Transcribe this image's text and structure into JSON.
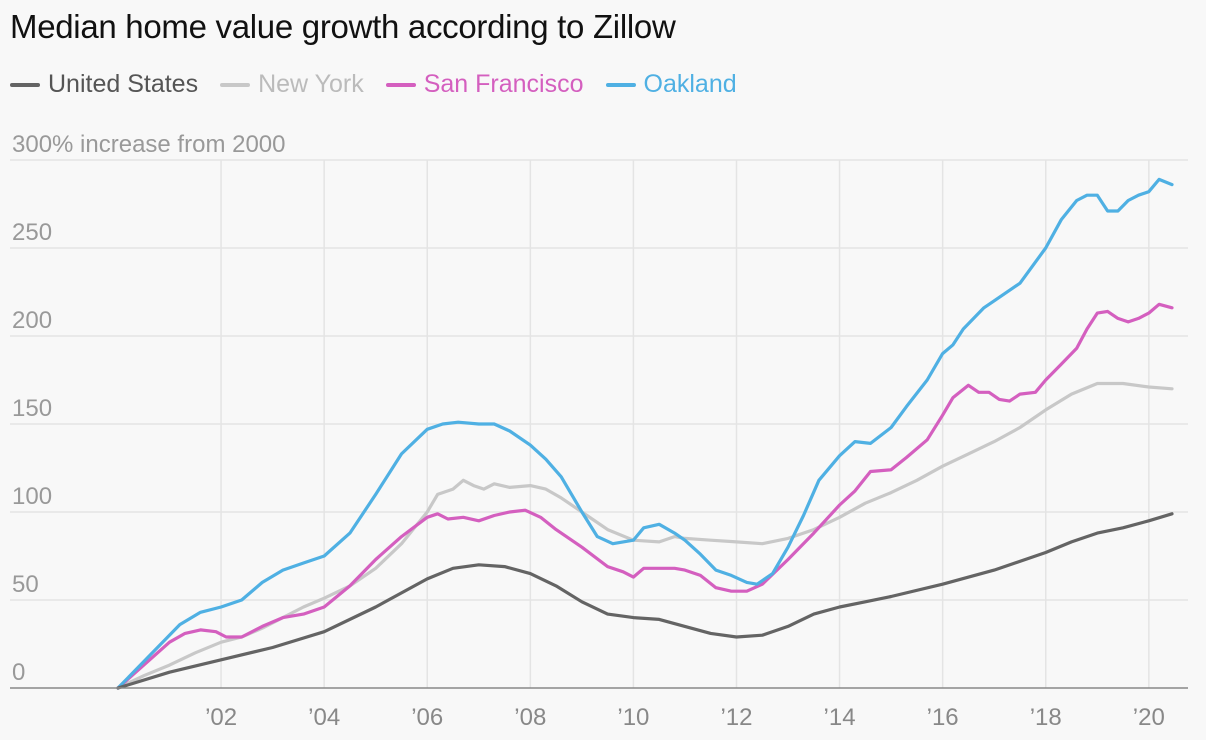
{
  "title": "Median home value growth according to Zillow",
  "chart_data": {
    "type": "line",
    "title": "Median home value growth according to Zillow",
    "y_top_label": "300% increase from 2000",
    "y_ticks": [
      {
        "value": 0,
        "label": "0"
      },
      {
        "value": 50,
        "label": "50"
      },
      {
        "value": 100,
        "label": "100"
      },
      {
        "value": 150,
        "label": "150"
      },
      {
        "value": 200,
        "label": "200"
      },
      {
        "value": 250,
        "label": "250"
      },
      {
        "value": 300,
        "label": "300% increase from 2000"
      }
    ],
    "x_ticks": [
      {
        "value": 2002,
        "label": "’02"
      },
      {
        "value": 2004,
        "label": "’04"
      },
      {
        "value": 2006,
        "label": "’06"
      },
      {
        "value": 2008,
        "label": "’08"
      },
      {
        "value": 2010,
        "label": "’10"
      },
      {
        "value": 2012,
        "label": "’12"
      },
      {
        "value": 2014,
        "label": "’14"
      },
      {
        "value": 2016,
        "label": "’16"
      },
      {
        "value": 2018,
        "label": "’18"
      },
      {
        "value": 2020,
        "label": "’20"
      }
    ],
    "xlim": [
      2000,
      2020.5
    ],
    "ylim": [
      0,
      300
    ],
    "grid": true,
    "legend_position": "top-left",
    "series": [
      {
        "name": "New York",
        "color": "#c8c8c8",
        "points": [
          [
            2000,
            0
          ],
          [
            2000.5,
            7
          ],
          [
            2001,
            13
          ],
          [
            2001.5,
            20
          ],
          [
            2002,
            26
          ],
          [
            2002.4,
            29
          ],
          [
            2002.8,
            34
          ],
          [
            2003.2,
            40
          ],
          [
            2003.6,
            46
          ],
          [
            2004,
            51
          ],
          [
            2004.5,
            58
          ],
          [
            2005,
            68
          ],
          [
            2005.5,
            82
          ],
          [
            2006,
            100
          ],
          [
            2006.2,
            110
          ],
          [
            2006.5,
            113
          ],
          [
            2006.7,
            118
          ],
          [
            2006.9,
            115
          ],
          [
            2007.1,
            113
          ],
          [
            2007.3,
            116
          ],
          [
            2007.6,
            114
          ],
          [
            2008,
            115
          ],
          [
            2008.3,
            113
          ],
          [
            2008.6,
            108
          ],
          [
            2009,
            100
          ],
          [
            2009.5,
            90
          ],
          [
            2010,
            84
          ],
          [
            2010.5,
            83
          ],
          [
            2010.8,
            86
          ],
          [
            2011,
            85
          ],
          [
            2011.5,
            84
          ],
          [
            2012,
            83
          ],
          [
            2012.5,
            82
          ],
          [
            2013,
            85
          ],
          [
            2013.5,
            90
          ],
          [
            2014,
            97
          ],
          [
            2014.5,
            105
          ],
          [
            2015,
            111
          ],
          [
            2015.5,
            118
          ],
          [
            2016,
            126
          ],
          [
            2016.5,
            133
          ],
          [
            2017,
            140
          ],
          [
            2017.5,
            148
          ],
          [
            2018,
            158
          ],
          [
            2018.5,
            167
          ],
          [
            2019,
            173
          ],
          [
            2019.5,
            173
          ],
          [
            2020,
            171
          ],
          [
            2020.45,
            170
          ]
        ]
      },
      {
        "name": "San Francisco",
        "color": "#d45fbf",
        "points": [
          [
            2000,
            0
          ],
          [
            2000.5,
            13
          ],
          [
            2001,
            26
          ],
          [
            2001.3,
            31
          ],
          [
            2001.6,
            33
          ],
          [
            2001.9,
            32
          ],
          [
            2002.1,
            29
          ],
          [
            2002.4,
            29
          ],
          [
            2002.8,
            35
          ],
          [
            2003.2,
            40
          ],
          [
            2003.6,
            42
          ],
          [
            2004,
            46
          ],
          [
            2004.5,
            58
          ],
          [
            2005,
            73
          ],
          [
            2005.5,
            86
          ],
          [
            2006,
            97
          ],
          [
            2006.2,
            99
          ],
          [
            2006.4,
            96
          ],
          [
            2006.7,
            97
          ],
          [
            2007,
            95
          ],
          [
            2007.3,
            98
          ],
          [
            2007.6,
            100
          ],
          [
            2007.9,
            101
          ],
          [
            2008.2,
            97
          ],
          [
            2008.5,
            90
          ],
          [
            2009,
            80
          ],
          [
            2009.5,
            69
          ],
          [
            2009.8,
            66
          ],
          [
            2010,
            63
          ],
          [
            2010.2,
            68
          ],
          [
            2010.5,
            68
          ],
          [
            2010.8,
            68
          ],
          [
            2011,
            67
          ],
          [
            2011.3,
            64
          ],
          [
            2011.6,
            57
          ],
          [
            2011.9,
            55
          ],
          [
            2012.2,
            55
          ],
          [
            2012.5,
            59
          ],
          [
            2013,
            73
          ],
          [
            2013.5,
            88
          ],
          [
            2014,
            104
          ],
          [
            2014.3,
            112
          ],
          [
            2014.6,
            123
          ],
          [
            2015,
            124
          ],
          [
            2015.3,
            131
          ],
          [
            2015.7,
            141
          ],
          [
            2016,
            155
          ],
          [
            2016.2,
            165
          ],
          [
            2016.5,
            172
          ],
          [
            2016.7,
            168
          ],
          [
            2016.9,
            168
          ],
          [
            2017.1,
            164
          ],
          [
            2017.3,
            163
          ],
          [
            2017.5,
            167
          ],
          [
            2017.8,
            168
          ],
          [
            2018,
            175
          ],
          [
            2018.3,
            184
          ],
          [
            2018.6,
            193
          ],
          [
            2018.8,
            204
          ],
          [
            2019,
            213
          ],
          [
            2019.2,
            214
          ],
          [
            2019.4,
            210
          ],
          [
            2019.6,
            208
          ],
          [
            2019.8,
            210
          ],
          [
            2020,
            213
          ],
          [
            2020.2,
            218
          ],
          [
            2020.45,
            216
          ]
        ]
      },
      {
        "name": "Oakland",
        "color": "#4fb0e3",
        "points": [
          [
            2000,
            0
          ],
          [
            2000.4,
            12
          ],
          [
            2000.8,
            24
          ],
          [
            2001.2,
            36
          ],
          [
            2001.6,
            43
          ],
          [
            2002,
            46
          ],
          [
            2002.4,
            50
          ],
          [
            2002.8,
            60
          ],
          [
            2003.2,
            67
          ],
          [
            2003.6,
            71
          ],
          [
            2004,
            75
          ],
          [
            2004.5,
            88
          ],
          [
            2005,
            110
          ],
          [
            2005.5,
            133
          ],
          [
            2006,
            147
          ],
          [
            2006.3,
            150
          ],
          [
            2006.6,
            151
          ],
          [
            2007,
            150
          ],
          [
            2007.3,
            150
          ],
          [
            2007.6,
            146
          ],
          [
            2008,
            138
          ],
          [
            2008.3,
            130
          ],
          [
            2008.6,
            120
          ],
          [
            2009,
            100
          ],
          [
            2009.3,
            86
          ],
          [
            2009.6,
            82
          ],
          [
            2010,
            84
          ],
          [
            2010.2,
            91
          ],
          [
            2010.5,
            93
          ],
          [
            2010.8,
            88
          ],
          [
            2011,
            84
          ],
          [
            2011.3,
            76
          ],
          [
            2011.6,
            67
          ],
          [
            2011.9,
            64
          ],
          [
            2012.2,
            60
          ],
          [
            2012.4,
            59
          ],
          [
            2012.7,
            65
          ],
          [
            2013,
            80
          ],
          [
            2013.3,
            98
          ],
          [
            2013.6,
            118
          ],
          [
            2014,
            132
          ],
          [
            2014.3,
            140
          ],
          [
            2014.6,
            139
          ],
          [
            2015,
            148
          ],
          [
            2015.3,
            160
          ],
          [
            2015.7,
            175
          ],
          [
            2016,
            190
          ],
          [
            2016.2,
            195
          ],
          [
            2016.4,
            204
          ],
          [
            2016.8,
            216
          ],
          [
            2017,
            220
          ],
          [
            2017.5,
            230
          ],
          [
            2018,
            250
          ],
          [
            2018.3,
            266
          ],
          [
            2018.6,
            277
          ],
          [
            2018.8,
            280
          ],
          [
            2019,
            280
          ],
          [
            2019.2,
            271
          ],
          [
            2019.4,
            271
          ],
          [
            2019.6,
            277
          ],
          [
            2019.8,
            280
          ],
          [
            2020,
            282
          ],
          [
            2020.2,
            289
          ],
          [
            2020.45,
            286
          ]
        ]
      },
      {
        "name": "United States",
        "color": "#646464",
        "points": [
          [
            2000,
            0
          ],
          [
            2001,
            9
          ],
          [
            2002,
            16
          ],
          [
            2003,
            23
          ],
          [
            2004,
            32
          ],
          [
            2005,
            46
          ],
          [
            2006,
            62
          ],
          [
            2006.5,
            68
          ],
          [
            2007,
            70
          ],
          [
            2007.5,
            69
          ],
          [
            2008,
            65
          ],
          [
            2008.5,
            58
          ],
          [
            2009,
            49
          ],
          [
            2009.5,
            42
          ],
          [
            2010,
            40
          ],
          [
            2010.5,
            39
          ],
          [
            2011,
            35
          ],
          [
            2011.5,
            31
          ],
          [
            2012,
            29
          ],
          [
            2012.5,
            30
          ],
          [
            2013,
            35
          ],
          [
            2013.5,
            42
          ],
          [
            2014,
            46
          ],
          [
            2014.5,
            49
          ],
          [
            2015,
            52
          ],
          [
            2016,
            59
          ],
          [
            2017,
            67
          ],
          [
            2018,
            77
          ],
          [
            2018.5,
            83
          ],
          [
            2019,
            88
          ],
          [
            2019.5,
            91
          ],
          [
            2020,
            95
          ],
          [
            2020.45,
            99
          ]
        ]
      }
    ],
    "legend": [
      {
        "name": "United States",
        "color": "#646464",
        "text_color": "#555555"
      },
      {
        "name": "New York",
        "color": "#c8c8c8",
        "text_color": "#bbbbbb"
      },
      {
        "name": "San Francisco",
        "color": "#d45fbf",
        "text_color": "#d45fbf"
      },
      {
        "name": "Oakland",
        "color": "#4fb0e3",
        "text_color": "#4fb0e3"
      }
    ]
  }
}
